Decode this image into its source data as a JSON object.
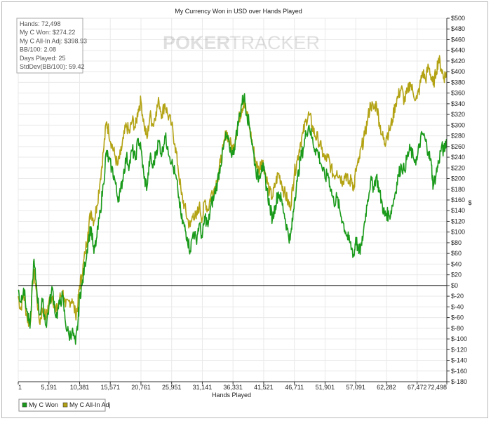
{
  "chart_data": {
    "type": "line",
    "title": "My Currency Won in USD over Hands Played",
    "xlabel": "Hands Played",
    "ylabel": "$",
    "watermark": {
      "part1": "POKER",
      "part2": "TRACKER"
    },
    "xlim": [
      1,
      72498
    ],
    "ylim": [
      -180,
      500
    ],
    "x_ticks": [
      1,
      5191,
      10381,
      15571,
      20761,
      25951,
      31141,
      36331,
      41521,
      46711,
      51901,
      57091,
      62282,
      67472,
      72498
    ],
    "y_ticks": [
      500,
      480,
      460,
      440,
      420,
      400,
      380,
      360,
      340,
      320,
      300,
      280,
      260,
      240,
      220,
      200,
      180,
      160,
      140,
      120,
      100,
      80,
      60,
      40,
      20,
      0,
      -20,
      -40,
      -60,
      -80,
      -100,
      -120,
      -140,
      -160,
      -180
    ],
    "y_tick_labels": [
      "$500",
      "$480",
      "$460",
      "$440",
      "$420",
      "$400",
      "$380",
      "$360",
      "$340",
      "$320",
      "$300",
      "$280",
      "$260",
      "$240",
      "$220",
      "$200",
      "$180",
      "$160",
      "$140",
      "$120",
      "$100",
      "$80",
      "$60",
      "$40",
      "$20",
      "$0",
      "$-20",
      "$-40",
      "$-60",
      "$-80",
      "$-100",
      "$-120",
      "$-140",
      "$-160",
      "$-180"
    ],
    "grid": true,
    "legend_position": "bottom-left",
    "stats": [
      "Hands: 72,498",
      "My C Won: $274.22",
      "My C All-In Adj: $398.93",
      "BB/100: 2.08",
      "Days Played: 25",
      "StdDev(BB/100): 59.42"
    ],
    "series": [
      {
        "name": "My C Won",
        "color": "#1a9a1a",
        "points": [
          [
            1,
            -10
          ],
          [
            400,
            -30
          ],
          [
            900,
            -5
          ],
          [
            1500,
            -50
          ],
          [
            2000,
            -80
          ],
          [
            2600,
            45
          ],
          [
            3000,
            10
          ],
          [
            3600,
            -55
          ],
          [
            4100,
            -30
          ],
          [
            4700,
            -75
          ],
          [
            5191,
            -40
          ],
          [
            5800,
            -5
          ],
          [
            6400,
            -60
          ],
          [
            7000,
            -35
          ],
          [
            7500,
            -20
          ],
          [
            8000,
            -70
          ],
          [
            8600,
            -95
          ],
          [
            9100,
            -85
          ],
          [
            9700,
            -110
          ],
          [
            10100,
            -70
          ],
          [
            10381,
            -20
          ],
          [
            10800,
            0
          ],
          [
            11300,
            40
          ],
          [
            11800,
            80
          ],
          [
            12300,
            110
          ],
          [
            12800,
            60
          ],
          [
            13300,
            90
          ],
          [
            13900,
            140
          ],
          [
            14400,
            190
          ],
          [
            14900,
            250
          ],
          [
            15300,
            235
          ],
          [
            15800,
            220
          ],
          [
            16300,
            200
          ],
          [
            16800,
            165
          ],
          [
            17300,
            175
          ],
          [
            17800,
            210
          ],
          [
            18300,
            240
          ],
          [
            18800,
            225
          ],
          [
            19300,
            255
          ],
          [
            19800,
            235
          ],
          [
            20300,
            275
          ],
          [
            20761,
            255
          ],
          [
            21300,
            200
          ],
          [
            21800,
            185
          ],
          [
            22300,
            240
          ],
          [
            22800,
            220
          ],
          [
            23300,
            250
          ],
          [
            23800,
            270
          ],
          [
            24300,
            245
          ],
          [
            24800,
            280
          ],
          [
            25300,
            260
          ],
          [
            25951,
            230
          ],
          [
            26500,
            210
          ],
          [
            27000,
            180
          ],
          [
            27600,
            125
          ],
          [
            28100,
            110
          ],
          [
            28600,
            90
          ],
          [
            29100,
            65
          ],
          [
            29600,
            100
          ],
          [
            30100,
            85
          ],
          [
            30600,
            115
          ],
          [
            31141,
            90
          ],
          [
            31600,
            130
          ],
          [
            32100,
            110
          ],
          [
            32600,
            150
          ],
          [
            33100,
            165
          ],
          [
            33700,
            195
          ],
          [
            34200,
            225
          ],
          [
            34700,
            255
          ],
          [
            35200,
            280
          ],
          [
            35700,
            260
          ],
          [
            36331,
            245
          ],
          [
            36800,
            275
          ],
          [
            37300,
            310
          ],
          [
            37800,
            340
          ],
          [
            38200,
            355
          ],
          [
            38700,
            320
          ],
          [
            39200,
            295
          ],
          [
            39700,
            255
          ],
          [
            40200,
            215
          ],
          [
            40700,
            200
          ],
          [
            41200,
            225
          ],
          [
            41521,
            215
          ],
          [
            42000,
            185
          ],
          [
            42500,
            150
          ],
          [
            43000,
            125
          ],
          [
            43500,
            150
          ],
          [
            44000,
            175
          ],
          [
            44500,
            160
          ],
          [
            45000,
            135
          ],
          [
            45500,
            105
          ],
          [
            46000,
            85
          ],
          [
            46400,
            120
          ],
          [
            46711,
            160
          ],
          [
            47200,
            195
          ],
          [
            47700,
            235
          ],
          [
            48200,
            255
          ],
          [
            48700,
            285
          ],
          [
            49200,
            300
          ],
          [
            49700,
            275
          ],
          [
            50200,
            255
          ],
          [
            50700,
            250
          ],
          [
            51300,
            225
          ],
          [
            51901,
            200
          ],
          [
            52400,
            210
          ],
          [
            52900,
            180
          ],
          [
            53400,
            155
          ],
          [
            53900,
            165
          ],
          [
            54400,
            140
          ],
          [
            54900,
            120
          ],
          [
            55400,
            100
          ],
          [
            55900,
            85
          ],
          [
            56400,
            70
          ],
          [
            56800,
            55
          ],
          [
            57091,
            90
          ],
          [
            57600,
            60
          ],
          [
            58100,
            75
          ],
          [
            58600,
            120
          ],
          [
            59100,
            160
          ],
          [
            59600,
            195
          ],
          [
            60100,
            185
          ],
          [
            60600,
            205
          ],
          [
            61100,
            175
          ],
          [
            61600,
            150
          ],
          [
            62000,
            130
          ],
          [
            62282,
            135
          ],
          [
            62800,
            130
          ],
          [
            63300,
            150
          ],
          [
            63800,
            175
          ],
          [
            64300,
            205
          ],
          [
            64800,
            225
          ],
          [
            65300,
            215
          ],
          [
            65800,
            240
          ],
          [
            66300,
            255
          ],
          [
            66800,
            240
          ],
          [
            67472,
            235
          ],
          [
            67900,
            265
          ],
          [
            68400,
            285
          ],
          [
            68900,
            270
          ],
          [
            69400,
            250
          ],
          [
            69900,
            225
          ],
          [
            70200,
            185
          ],
          [
            70700,
            210
          ],
          [
            71100,
            230
          ],
          [
            71600,
            260
          ],
          [
            72000,
            250
          ],
          [
            72498,
            274
          ]
        ]
      },
      {
        "name": "My C All-In Adj",
        "color": "#b3a314",
        "points": [
          [
            1,
            -20
          ],
          [
            400,
            -45
          ],
          [
            900,
            -15
          ],
          [
            1500,
            -60
          ],
          [
            2000,
            -75
          ],
          [
            2600,
            30
          ],
          [
            3000,
            -5
          ],
          [
            3600,
            -70
          ],
          [
            4100,
            -45
          ],
          [
            4700,
            -60
          ],
          [
            5191,
            -30
          ],
          [
            5800,
            -20
          ],
          [
            6400,
            -50
          ],
          [
            7000,
            -25
          ],
          [
            7500,
            -10
          ],
          [
            8000,
            -40
          ],
          [
            8600,
            -30
          ],
          [
            9100,
            -25
          ],
          [
            9700,
            -55
          ],
          [
            10100,
            -35
          ],
          [
            10381,
            0
          ],
          [
            10800,
            20
          ],
          [
            11300,
            60
          ],
          [
            11800,
            100
          ],
          [
            12300,
            140
          ],
          [
            12800,
            120
          ],
          [
            13300,
            150
          ],
          [
            13900,
            200
          ],
          [
            14400,
            250
          ],
          [
            14900,
            305
          ],
          [
            15300,
            290
          ],
          [
            15800,
            265
          ],
          [
            16300,
            245
          ],
          [
            16800,
            225
          ],
          [
            17300,
            245
          ],
          [
            17800,
            275
          ],
          [
            18300,
            300
          ],
          [
            18800,
            285
          ],
          [
            19300,
            310
          ],
          [
            19800,
            295
          ],
          [
            20300,
            330
          ],
          [
            20761,
            345
          ],
          [
            21300,
            300
          ],
          [
            21800,
            275
          ],
          [
            22300,
            320
          ],
          [
            22800,
            300
          ],
          [
            23300,
            325
          ],
          [
            23800,
            345
          ],
          [
            24300,
            320
          ],
          [
            24800,
            340
          ],
          [
            25300,
            320
          ],
          [
            25951,
            300
          ],
          [
            26500,
            265
          ],
          [
            27000,
            225
          ],
          [
            27600,
            170
          ],
          [
            28100,
            150
          ],
          [
            28600,
            125
          ],
          [
            29100,
            110
          ],
          [
            29600,
            135
          ],
          [
            30100,
            125
          ],
          [
            30600,
            150
          ],
          [
            31141,
            125
          ],
          [
            31600,
            160
          ],
          [
            32100,
            140
          ],
          [
            32600,
            170
          ],
          [
            33100,
            180
          ],
          [
            33700,
            200
          ],
          [
            34200,
            230
          ],
          [
            34700,
            255
          ],
          [
            35200,
            290
          ],
          [
            35700,
            270
          ],
          [
            36331,
            255
          ],
          [
            36800,
            280
          ],
          [
            37300,
            310
          ],
          [
            37800,
            330
          ],
          [
            38200,
            345
          ],
          [
            38700,
            320
          ],
          [
            39200,
            290
          ],
          [
            39700,
            260
          ],
          [
            40200,
            230
          ],
          [
            40700,
            215
          ],
          [
            41200,
            235
          ],
          [
            41521,
            225
          ],
          [
            42000,
            200
          ],
          [
            42500,
            175
          ],
          [
            43000,
            165
          ],
          [
            43500,
            190
          ],
          [
            44000,
            210
          ],
          [
            44500,
            195
          ],
          [
            45000,
            175
          ],
          [
            45500,
            160
          ],
          [
            46000,
            145
          ],
          [
            46400,
            180
          ],
          [
            46711,
            210
          ],
          [
            47200,
            235
          ],
          [
            47700,
            265
          ],
          [
            48200,
            285
          ],
          [
            48700,
            310
          ],
          [
            49200,
            320
          ],
          [
            49700,
            300
          ],
          [
            50200,
            280
          ],
          [
            50700,
            275
          ],
          [
            51300,
            255
          ],
          [
            51901,
            235
          ],
          [
            52400,
            240
          ],
          [
            52900,
            220
          ],
          [
            53400,
            205
          ],
          [
            53900,
            215
          ],
          [
            54400,
            205
          ],
          [
            54900,
            195
          ],
          [
            55400,
            210
          ],
          [
            55900,
            190
          ],
          [
            56400,
            200
          ],
          [
            56800,
            180
          ],
          [
            57091,
            215
          ],
          [
            57600,
            230
          ],
          [
            58100,
            260
          ],
          [
            58600,
            280
          ],
          [
            59100,
            310
          ],
          [
            59600,
            340
          ],
          [
            60100,
            330
          ],
          [
            60600,
            340
          ],
          [
            61100,
            305
          ],
          [
            61600,
            280
          ],
          [
            62000,
            265
          ],
          [
            62282,
            280
          ],
          [
            62800,
            290
          ],
          [
            63300,
            310
          ],
          [
            63800,
            340
          ],
          [
            64300,
            355
          ],
          [
            64800,
            370
          ],
          [
            65300,
            345
          ],
          [
            65800,
            360
          ],
          [
            66300,
            380
          ],
          [
            66800,
            360
          ],
          [
            67472,
            350
          ],
          [
            67900,
            370
          ],
          [
            68400,
            400
          ],
          [
            68900,
            385
          ],
          [
            69400,
            410
          ],
          [
            69900,
            390
          ],
          [
            70200,
            375
          ],
          [
            70700,
            400
          ],
          [
            71100,
            425
          ],
          [
            71600,
            405
          ],
          [
            72000,
            390
          ],
          [
            72498,
            399
          ]
        ]
      }
    ]
  }
}
